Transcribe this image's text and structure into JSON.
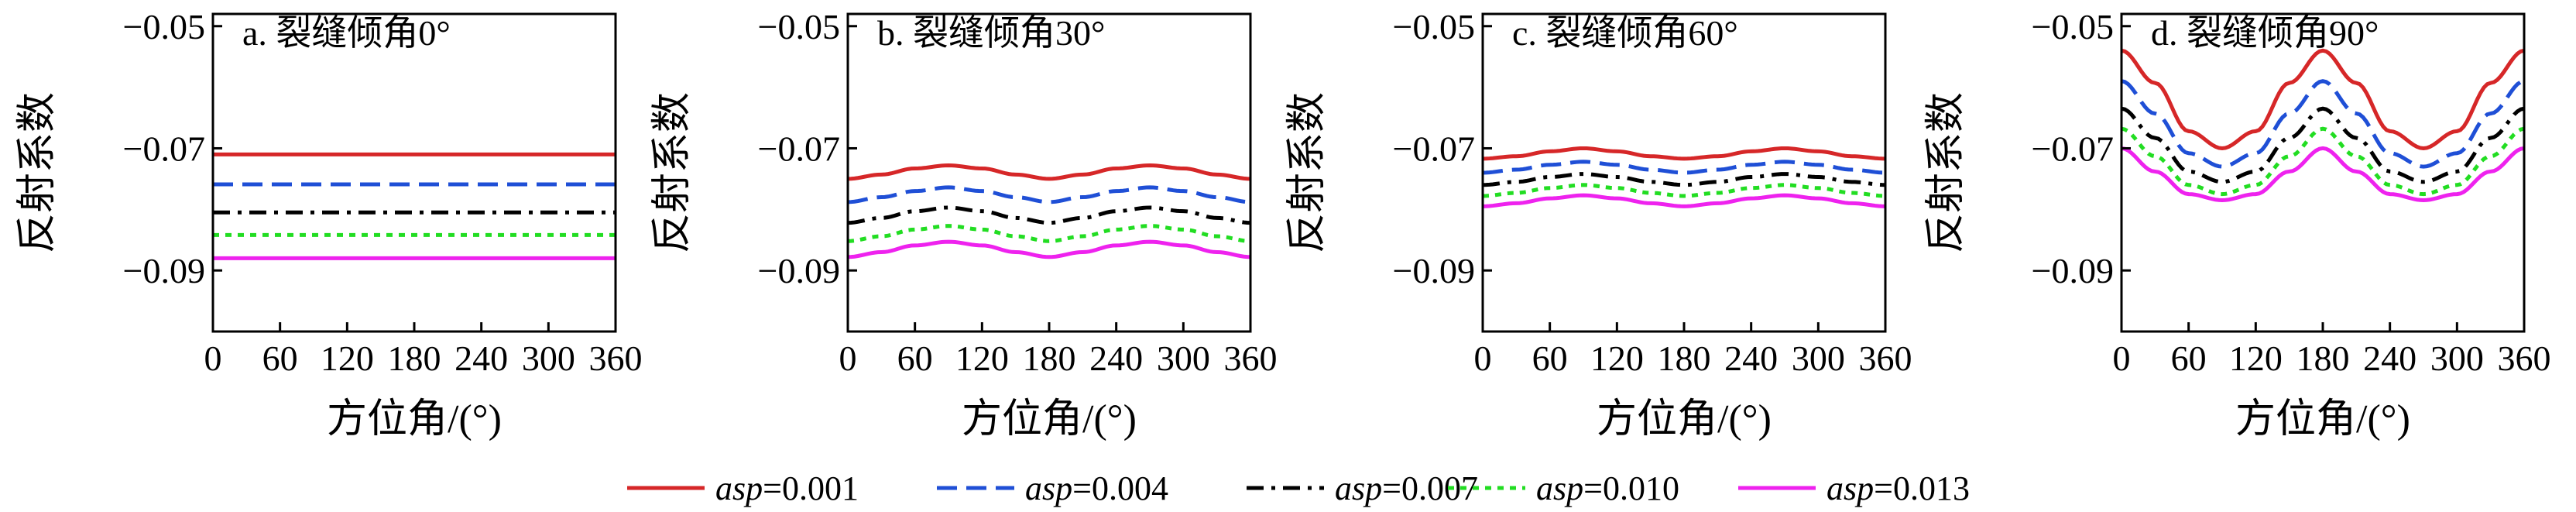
{
  "legend": {
    "prefix": "asp",
    "items": [
      {
        "value": "=0.001",
        "color": "#d62728",
        "dash": "solid"
      },
      {
        "value": "=0.004",
        "color": "#1f4fd6",
        "dash": "dashed"
      },
      {
        "value": "=0.007",
        "color": "#000000",
        "dash": "dashdot"
      },
      {
        "value": "=0.010",
        "color": "#22dd22",
        "dash": "dotted"
      },
      {
        "value": "=0.013",
        "color": "#ee22ee",
        "dash": "solid"
      }
    ]
  },
  "chart_data": [
    {
      "type": "line",
      "title": "a. 裂缝倾角0°",
      "xlabel": "方位角/(°)",
      "ylabel": "反射系数",
      "xlim": [
        0,
        360
      ],
      "ylim": [
        -0.1,
        -0.048
      ],
      "xticks": [
        "0",
        "60",
        "120",
        "180",
        "240",
        "300",
        "360"
      ],
      "yticks": [
        {
          "value": -0.05,
          "label": "−0.05"
        },
        {
          "value": -0.07,
          "label": "−0.07"
        },
        {
          "value": -0.09,
          "label": "−0.09"
        }
      ],
      "x": [
        0,
        90,
        180,
        270,
        360
      ],
      "series": [
        {
          "name": "asp=0.001",
          "values": [
            -0.071,
            -0.071,
            -0.071,
            -0.071,
            -0.071
          ]
        },
        {
          "name": "asp=0.004",
          "values": [
            -0.0759,
            -0.0759,
            -0.0759,
            -0.0759,
            -0.0759
          ]
        },
        {
          "name": "asp=0.007",
          "values": [
            -0.0805,
            -0.0805,
            -0.0805,
            -0.0805,
            -0.0805
          ]
        },
        {
          "name": "asp=0.010",
          "values": [
            -0.0842,
            -0.0842,
            -0.0842,
            -0.0842,
            -0.0842
          ]
        },
        {
          "name": "asp=0.013",
          "values": [
            -0.088,
            -0.088,
            -0.088,
            -0.088,
            -0.088
          ]
        }
      ]
    },
    {
      "type": "line",
      "title": "b. 裂缝倾角30°",
      "xlabel": "方位角/(°)",
      "ylabel": "反射系数",
      "xlim": [
        0,
        360
      ],
      "ylim": [
        -0.1,
        -0.048
      ],
      "xticks": [
        "0",
        "60",
        "120",
        "180",
        "240",
        "300",
        "360"
      ],
      "yticks": [
        {
          "value": -0.05,
          "label": "−0.05"
        },
        {
          "value": -0.07,
          "label": "−0.07"
        },
        {
          "value": -0.09,
          "label": "−0.09"
        }
      ],
      "x": [
        0,
        30,
        60,
        90,
        120,
        150,
        180,
        210,
        240,
        270,
        300,
        330,
        360
      ],
      "series": [
        {
          "name": "asp=0.001",
          "values": [
            -0.075,
            -0.0743,
            -0.0733,
            -0.0728,
            -0.0733,
            -0.0743,
            -0.075,
            -0.0743,
            -0.0733,
            -0.0728,
            -0.0733,
            -0.0743,
            -0.075
          ]
        },
        {
          "name": "asp=0.004",
          "values": [
            -0.0788,
            -0.078,
            -0.077,
            -0.0764,
            -0.077,
            -0.078,
            -0.0788,
            -0.078,
            -0.077,
            -0.0764,
            -0.077,
            -0.078,
            -0.0788
          ]
        },
        {
          "name": "asp=0.007",
          "values": [
            -0.0822,
            -0.0814,
            -0.0803,
            -0.0797,
            -0.0803,
            -0.0814,
            -0.0822,
            -0.0814,
            -0.0803,
            -0.0797,
            -0.0803,
            -0.0814,
            -0.0822
          ]
        },
        {
          "name": "asp=0.010",
          "values": [
            -0.0852,
            -0.0844,
            -0.0833,
            -0.0827,
            -0.0833,
            -0.0844,
            -0.0852,
            -0.0844,
            -0.0833,
            -0.0827,
            -0.0833,
            -0.0844,
            -0.0852
          ]
        },
        {
          "name": "asp=0.013",
          "values": [
            -0.0878,
            -0.087,
            -0.0859,
            -0.0853,
            -0.0859,
            -0.087,
            -0.0878,
            -0.087,
            -0.0859,
            -0.0853,
            -0.0859,
            -0.087,
            -0.0878
          ]
        }
      ]
    },
    {
      "type": "line",
      "title": "c. 裂缝倾角60°",
      "xlabel": "方位角/(°)",
      "ylabel": "反射系数",
      "xlim": [
        0,
        360
      ],
      "ylim": [
        -0.1,
        -0.048
      ],
      "xticks": [
        "0",
        "60",
        "120",
        "180",
        "240",
        "300",
        "360"
      ],
      "yticks": [
        {
          "value": -0.05,
          "label": "−0.05"
        },
        {
          "value": -0.07,
          "label": "−0.07"
        },
        {
          "value": -0.09,
          "label": "−0.09"
        }
      ],
      "x": [
        0,
        30,
        60,
        90,
        120,
        150,
        180,
        210,
        240,
        270,
        300,
        330,
        360
      ],
      "series": [
        {
          "name": "asp=0.001",
          "values": [
            -0.0717,
            -0.0713,
            -0.0705,
            -0.07,
            -0.0705,
            -0.0713,
            -0.0717,
            -0.0713,
            -0.0705,
            -0.07,
            -0.0705,
            -0.0713,
            -0.0717
          ]
        },
        {
          "name": "asp=0.004",
          "values": [
            -0.074,
            -0.0735,
            -0.0727,
            -0.0722,
            -0.0727,
            -0.0735,
            -0.074,
            -0.0735,
            -0.0727,
            -0.0722,
            -0.0727,
            -0.0735,
            -0.074
          ]
        },
        {
          "name": "asp=0.007",
          "values": [
            -0.076,
            -0.0755,
            -0.0747,
            -0.0742,
            -0.0747,
            -0.0755,
            -0.076,
            -0.0755,
            -0.0747,
            -0.0742,
            -0.0747,
            -0.0755,
            -0.076
          ]
        },
        {
          "name": "asp=0.010",
          "values": [
            -0.0778,
            -0.0773,
            -0.0765,
            -0.076,
            -0.0765,
            -0.0773,
            -0.0778,
            -0.0773,
            -0.0765,
            -0.076,
            -0.0765,
            -0.0773,
            -0.0778
          ]
        },
        {
          "name": "asp=0.013",
          "values": [
            -0.0795,
            -0.079,
            -0.0782,
            -0.0777,
            -0.0782,
            -0.079,
            -0.0795,
            -0.079,
            -0.0782,
            -0.0777,
            -0.0782,
            -0.079,
            -0.0795
          ]
        }
      ]
    },
    {
      "type": "line",
      "title": "d. 裂缝倾角90°",
      "xlabel": "方位角/(°)",
      "ylabel": "反射系数",
      "xlim": [
        0,
        360
      ],
      "ylim": [
        -0.1,
        -0.048
      ],
      "xticks": [
        "0",
        "60",
        "120",
        "180",
        "240",
        "300",
        "360"
      ],
      "yticks": [
        {
          "value": -0.05,
          "label": "−0.05"
        },
        {
          "value": -0.07,
          "label": "−0.07"
        },
        {
          "value": -0.09,
          "label": "−0.09"
        }
      ],
      "x": [
        0,
        30,
        60,
        90,
        120,
        150,
        180,
        210,
        240,
        270,
        300,
        330,
        360
      ],
      "series": [
        {
          "name": "asp=0.001",
          "values": [
            -0.054,
            -0.0593,
            -0.0672,
            -0.07,
            -0.0672,
            -0.0593,
            -0.054,
            -0.0593,
            -0.0672,
            -0.07,
            -0.0672,
            -0.0593,
            -0.054
          ]
        },
        {
          "name": "asp=0.004",
          "values": [
            -0.059,
            -0.0643,
            -0.0708,
            -0.073,
            -0.0708,
            -0.0643,
            -0.059,
            -0.0643,
            -0.0708,
            -0.073,
            -0.0708,
            -0.0643,
            -0.059
          ]
        },
        {
          "name": "asp=0.007",
          "values": [
            -0.0635,
            -0.0683,
            -0.0738,
            -0.0755,
            -0.0738,
            -0.0683,
            -0.0635,
            -0.0683,
            -0.0738,
            -0.0755,
            -0.0738,
            -0.0683,
            -0.0635
          ]
        },
        {
          "name": "asp=0.010",
          "values": [
            -0.0668,
            -0.0713,
            -0.076,
            -0.0775,
            -0.076,
            -0.0713,
            -0.0668,
            -0.0713,
            -0.076,
            -0.0775,
            -0.076,
            -0.0713,
            -0.0668
          ]
        },
        {
          "name": "asp=0.013",
          "values": [
            -0.07,
            -0.0738,
            -0.0775,
            -0.0785,
            -0.0775,
            -0.0738,
            -0.07,
            -0.0738,
            -0.0775,
            -0.0785,
            -0.0775,
            -0.0738,
            -0.07
          ]
        }
      ]
    }
  ]
}
